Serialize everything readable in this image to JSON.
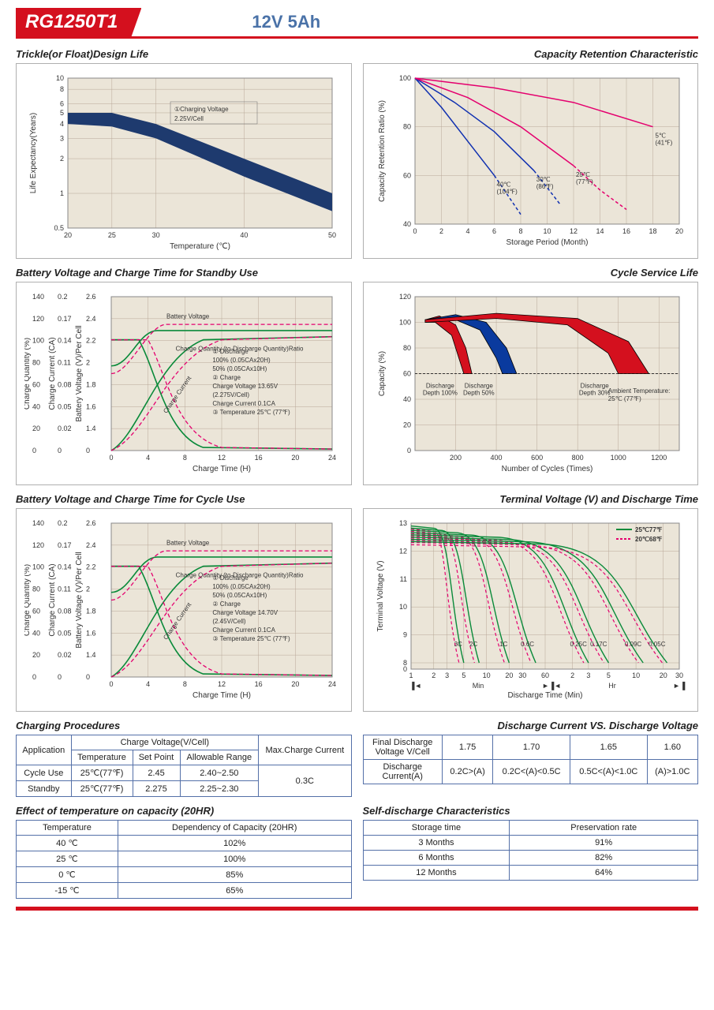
{
  "header": {
    "model": "RG1250T1",
    "spec": "12V  5Ah"
  },
  "charts": {
    "trickle": {
      "title": "Trickle(or Float)Design Life",
      "xlabel": "Temperature (℃)",
      "ylabel": "Life Expectancy(Years)",
      "xticks": [
        20,
        25,
        30,
        40,
        50
      ],
      "yticks": [
        0.5,
        1,
        2,
        3,
        4,
        5,
        6,
        8,
        10
      ],
      "annotation": "①Charging Voltage\n2.25V/Cell",
      "band_upper": [
        [
          20,
          5
        ],
        [
          25,
          5
        ],
        [
          30,
          4
        ],
        [
          40,
          2
        ],
        [
          50,
          1
        ]
      ],
      "band_lower": [
        [
          20,
          4
        ],
        [
          25,
          3.8
        ],
        [
          30,
          3
        ],
        [
          40,
          1.4
        ],
        [
          50,
          0.7
        ]
      ],
      "band_color": "#1e3a6e",
      "bg": "#ebe5d8"
    },
    "retention": {
      "title": "Capacity  Retention  Characteristic",
      "xlabel": "Storage Period (Month)",
      "ylabel": "Capacity Retention Ratio (%)",
      "xticks": [
        0,
        2,
        4,
        6,
        8,
        10,
        12,
        14,
        16,
        18,
        20
      ],
      "yticks": [
        40,
        60,
        80,
        100
      ],
      "series": [
        {
          "label": "40℃\n(104℉)",
          "color": "#1030b0",
          "pts": [
            [
              0,
              100
            ],
            [
              2,
              88
            ],
            [
              4,
              74
            ],
            [
              6,
              60
            ]
          ],
          "dash": [
            [
              6,
              60
            ],
            [
              7,
              52
            ],
            [
              8,
              44
            ]
          ]
        },
        {
          "label": "30℃\n(86℉)",
          "color": "#1030b0",
          "pts": [
            [
              0,
              100
            ],
            [
              3,
              90
            ],
            [
              6,
              78
            ],
            [
              9,
              62
            ]
          ],
          "dash": [
            [
              9,
              62
            ],
            [
              10,
              55
            ],
            [
              11,
              48
            ]
          ]
        },
        {
          "label": "25℃\n(77℉)",
          "color": "#e4006e",
          "pts": [
            [
              0,
              100
            ],
            [
              4,
              92
            ],
            [
              8,
              80
            ],
            [
              12,
              64
            ]
          ],
          "dash": [
            [
              12,
              64
            ],
            [
              14,
              54
            ],
            [
              16,
              46
            ]
          ]
        },
        {
          "label": "5℃\n(41℉)",
          "color": "#e4006e",
          "pts": [
            [
              0,
              100
            ],
            [
              6,
              96
            ],
            [
              12,
              90
            ],
            [
              18,
              80
            ]
          ],
          "dash": []
        }
      ],
      "bg": "#ebe5d8"
    },
    "standby": {
      "title": "Battery Voltage and Charge Time for Standby Use",
      "xlabel": "Charge Time (H)",
      "y1": "Charge Quantity (%)",
      "y2": "Charge Current (CA)",
      "y3": "Battery Voltage (V)/Per Cell",
      "xticks": [
        0,
        4,
        8,
        12,
        16,
        20,
        24
      ],
      "y1ticks": [
        0,
        20,
        40,
        60,
        80,
        100,
        120,
        140
      ],
      "y2ticks": [
        0,
        0.02,
        0.05,
        0.08,
        0.11,
        0.14,
        0.17,
        0.2
      ],
      "y3ticks": [
        0,
        1.4,
        1.6,
        1.8,
        2.0,
        2.2,
        2.4,
        2.6
      ],
      "notes": [
        "① Discharge",
        "  100% (0.05CAx20H)",
        "  50% (0.05CAx10H)",
        "② Charge",
        "  Charge Voltage 13.65V",
        "  (2.275V/Cell)",
        "  Charge Current 0.1CA",
        "③ Temperature 25℃ (77℉)"
      ],
      "colors": {
        "green": "#0a8a3a",
        "pink": "#e4006e"
      },
      "bg": "#ebe5d8"
    },
    "cycle_life": {
      "title": "Cycle Service Life",
      "xlabel": "Number of Cycles (Times)",
      "ylabel": "Capacity (%)",
      "xticks": [
        200,
        400,
        600,
        800,
        1000,
        1200
      ],
      "yticks": [
        0,
        20,
        40,
        60,
        80,
        100,
        120
      ],
      "bands": [
        {
          "label": "Discharge\nDepth 100%",
          "color": "#d4101e",
          "upper": [
            [
              50,
              102
            ],
            [
              120,
              105
            ],
            [
              200,
              98
            ],
            [
              250,
              80
            ],
            [
              280,
              60
            ]
          ],
          "lower": [
            [
              50,
              100
            ],
            [
              100,
              100
            ],
            [
              180,
              90
            ],
            [
              220,
              70
            ],
            [
              240,
              60
            ]
          ]
        },
        {
          "label": "Discharge\nDepth 50%",
          "color": "#0a3a9e",
          "upper": [
            [
              50,
              102
            ],
            [
              200,
              106
            ],
            [
              350,
              100
            ],
            [
              450,
              80
            ],
            [
              500,
              60
            ]
          ],
          "lower": [
            [
              50,
              100
            ],
            [
              200,
              102
            ],
            [
              320,
              94
            ],
            [
              400,
              72
            ],
            [
              430,
              60
            ]
          ]
        },
        {
          "label": "Discharge\nDepth 30%",
          "color": "#d4101e",
          "upper": [
            [
              50,
              102
            ],
            [
              400,
              107
            ],
            [
              800,
              103
            ],
            [
              1050,
              85
            ],
            [
              1150,
              60
            ]
          ],
          "lower": [
            [
              50,
              100
            ],
            [
              400,
              103
            ],
            [
              750,
              98
            ],
            [
              950,
              76
            ],
            [
              1000,
              60
            ]
          ]
        }
      ],
      "note": "Ambient Temperature:\n25℃ (77℉)",
      "bg": "#ebe5d8"
    },
    "cycle_use": {
      "title": "Battery Voltage and Charge Time for Cycle Use",
      "xlabel": "Charge Time (H)",
      "xticks": [
        0,
        4,
        8,
        12,
        16,
        20,
        24
      ],
      "notes": [
        "① Discharge",
        "  100% (0.05CAx20H)",
        "  50% (0.05CAx10H)",
        "② Charge",
        "  Charge Voltage 14.70V",
        "  (2.45V/Cell)",
        "  Charge Current 0.1CA",
        "③ Temperature 25℃ (77℉)"
      ],
      "bg": "#ebe5d8"
    },
    "terminal": {
      "title": "Terminal Voltage (V) and Discharge Time",
      "xlabel": "Discharge Time (Min)",
      "ylabel": "Terminal Voltage (V)",
      "yticks": [
        0,
        8,
        9,
        10,
        11,
        12,
        13
      ],
      "xsections": [
        "Min",
        "Hr"
      ],
      "legend": [
        {
          "label": "25℃77℉",
          "color": "#0a8a3a"
        },
        {
          "label": "20℃68℉",
          "color": "#e4006e",
          "dash": true
        }
      ],
      "curves": [
        "3C",
        "2C",
        "1C",
        "0.6C",
        "0.25C",
        "0.17C",
        "0.09C",
        "0.05C"
      ],
      "bg": "#ebe5d8"
    }
  },
  "tables": {
    "charging": {
      "title": "Charging Procedures",
      "headers": {
        "app": "Application",
        "cv": "Charge Voltage(V/Cell)",
        "temp": "Temperature",
        "sp": "Set Point",
        "ar": "Allowable Range",
        "max": "Max.Charge Current"
      },
      "rows": [
        {
          "app": "Cycle Use",
          "temp": "25℃(77℉)",
          "sp": "2.45",
          "ar": "2.40~2.50"
        },
        {
          "app": "Standby",
          "temp": "25℃(77℉)",
          "sp": "2.275",
          "ar": "2.25~2.30"
        }
      ],
      "max": "0.3C"
    },
    "discharge_v": {
      "title": "Discharge Current VS. Discharge Voltage",
      "r1": {
        "h": "Final Discharge\nVoltage V/Cell",
        "v": [
          "1.75",
          "1.70",
          "1.65",
          "1.60"
        ]
      },
      "r2": {
        "h": "Discharge\nCurrent(A)",
        "v": [
          "0.2C>(A)",
          "0.2C<(A)<0.5C",
          "0.5C<(A)<1.0C",
          "(A)>1.0C"
        ]
      }
    },
    "temp_effect": {
      "title": "Effect of temperature on capacity (20HR)",
      "headers": [
        "Temperature",
        "Dependency of Capacity (20HR)"
      ],
      "rows": [
        [
          "40 ℃",
          "102%"
        ],
        [
          "25 ℃",
          "100%"
        ],
        [
          "0 ℃",
          "85%"
        ],
        [
          "-15 ℃",
          "65%"
        ]
      ]
    },
    "self_discharge": {
      "title": "Self-discharge Characteristics",
      "headers": [
        "Storage time",
        "Preservation rate"
      ],
      "rows": [
        [
          "3 Months",
          "91%"
        ],
        [
          "6 Months",
          "82%"
        ],
        [
          "12 Months",
          "64%"
        ]
      ]
    }
  }
}
